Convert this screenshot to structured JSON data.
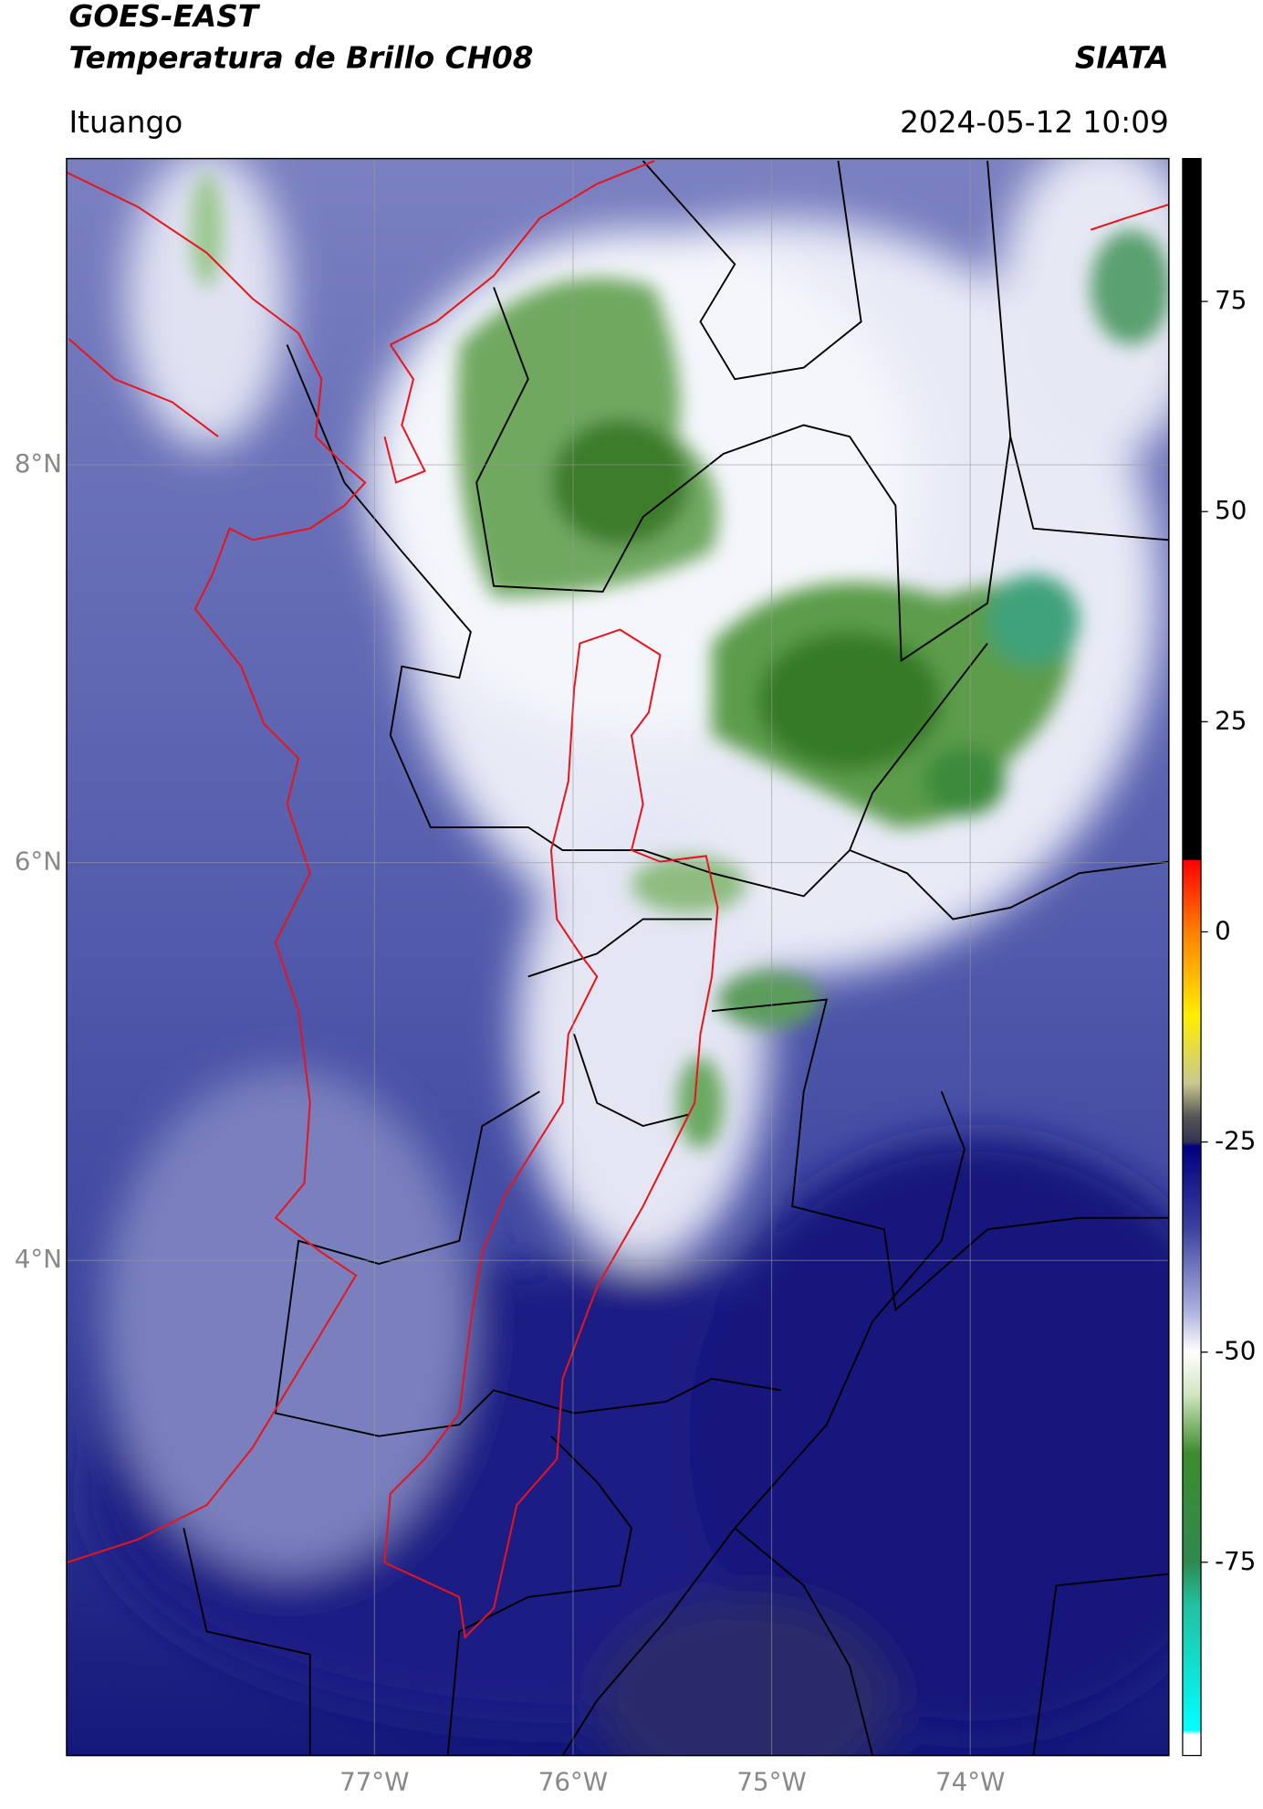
{
  "chart_data": {
    "type": "map",
    "title": "GOES-EAST",
    "subtitle": "Temperatura de Brillo CH08",
    "source": "SIATA",
    "region": "Ituango",
    "datetime": "2024-05-12 10:09",
    "xlim": [
      -78.55,
      -73.0
    ],
    "ylim": [
      1.51,
      9.54
    ],
    "xticks": [
      {
        "value": -77,
        "label": "77°W"
      },
      {
        "value": -76,
        "label": "76°W"
      },
      {
        "value": -75,
        "label": "75°W"
      },
      {
        "value": -74,
        "label": "74°W"
      }
    ],
    "yticks": [
      {
        "value": 8,
        "label": "8°N"
      },
      {
        "value": 6,
        "label": "6°N"
      },
      {
        "value": 4,
        "label": "4°N"
      }
    ],
    "grid": true,
    "clim": [
      -98,
      92
    ],
    "cticks": [
      75,
      50,
      25,
      0,
      -25,
      -50,
      -75
    ],
    "colormap": [
      {
        "value": 92,
        "color": "#000000"
      },
      {
        "value": 8.6,
        "color": "#000000"
      },
      {
        "value": 8.5,
        "color": "#ff0000"
      },
      {
        "value": 0,
        "color": "#ff8000"
      },
      {
        "value": -10,
        "color": "#ffee00"
      },
      {
        "value": -18,
        "color": "#c8c890"
      },
      {
        "value": -22,
        "color": "#555555"
      },
      {
        "value": -25,
        "color": "#333355"
      },
      {
        "value": -25.5,
        "color": "#000080"
      },
      {
        "value": -35,
        "color": "#3a3f9e"
      },
      {
        "value": -45,
        "color": "#aab0dd"
      },
      {
        "value": -50,
        "color": "#ffffff"
      },
      {
        "value": -55,
        "color": "#d0e6c0"
      },
      {
        "value": -62,
        "color": "#3c8c2c"
      },
      {
        "value": -75,
        "color": "#2f8a50"
      },
      {
        "value": -80,
        "color": "#22c0a0"
      },
      {
        "value": -95,
        "color": "#00ffff"
      },
      {
        "value": -95.5,
        "color": "#ffffff"
      },
      {
        "value": -98,
        "color": "#ffffff"
      }
    ]
  }
}
